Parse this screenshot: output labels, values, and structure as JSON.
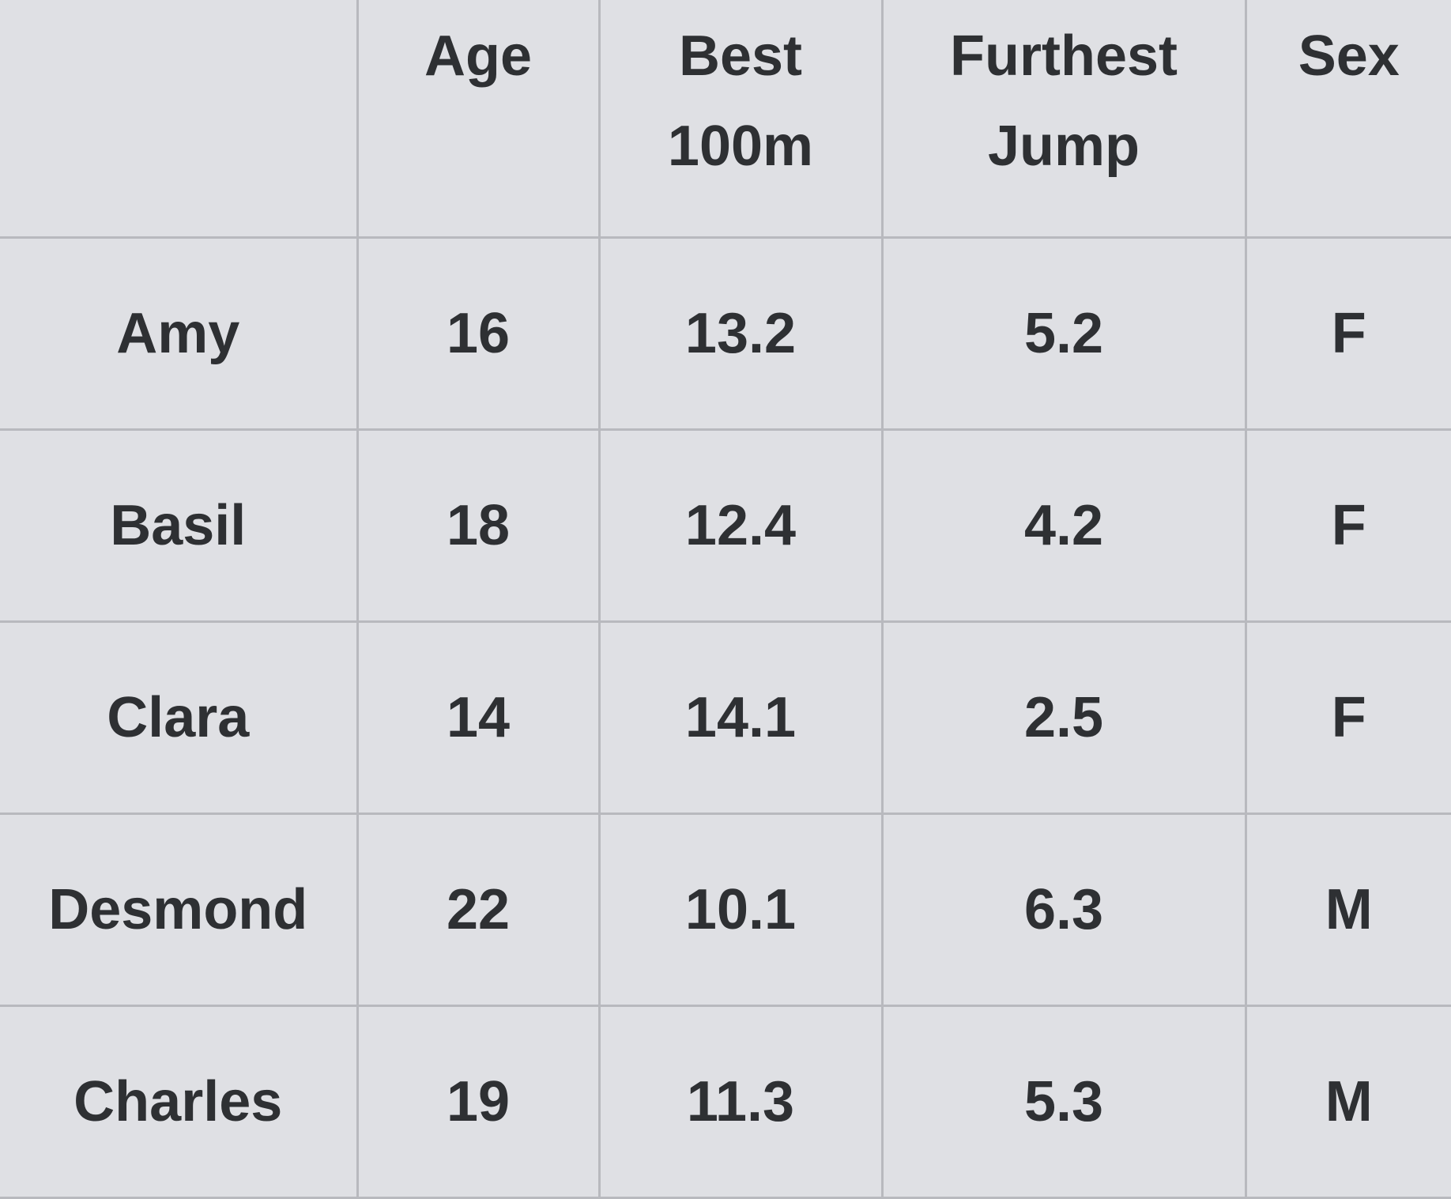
{
  "table": {
    "headers": [
      {
        "key": "name",
        "lines": [
          ""
        ]
      },
      {
        "key": "age",
        "lines": [
          "Age"
        ]
      },
      {
        "key": "best_100m",
        "lines": [
          "Best",
          "100m"
        ]
      },
      {
        "key": "furthest_jump",
        "lines": [
          "Furthest",
          "Jump"
        ]
      },
      {
        "key": "sex",
        "lines": [
          "Sex"
        ]
      }
    ],
    "rows": [
      {
        "name": "Amy",
        "age": "16",
        "best_100m": "13.2",
        "furthest_jump": "5.2",
        "sex": "F"
      },
      {
        "name": "Basil",
        "age": "18",
        "best_100m": "12.4",
        "furthest_jump": "4.2",
        "sex": "F"
      },
      {
        "name": "Clara",
        "age": "14",
        "best_100m": "14.1",
        "furthest_jump": "2.5",
        "sex": "F"
      },
      {
        "name": "Desmond",
        "age": "22",
        "best_100m": "10.1",
        "furthest_jump": "6.3",
        "sex": "M"
      },
      {
        "name": "Charles",
        "age": "19",
        "best_100m": "11.3",
        "furthest_jump": "5.3",
        "sex": "M"
      }
    ]
  },
  "colors": {
    "background": "#dfe0e4",
    "grid": "#b8b9be",
    "text": "#2e3033"
  }
}
